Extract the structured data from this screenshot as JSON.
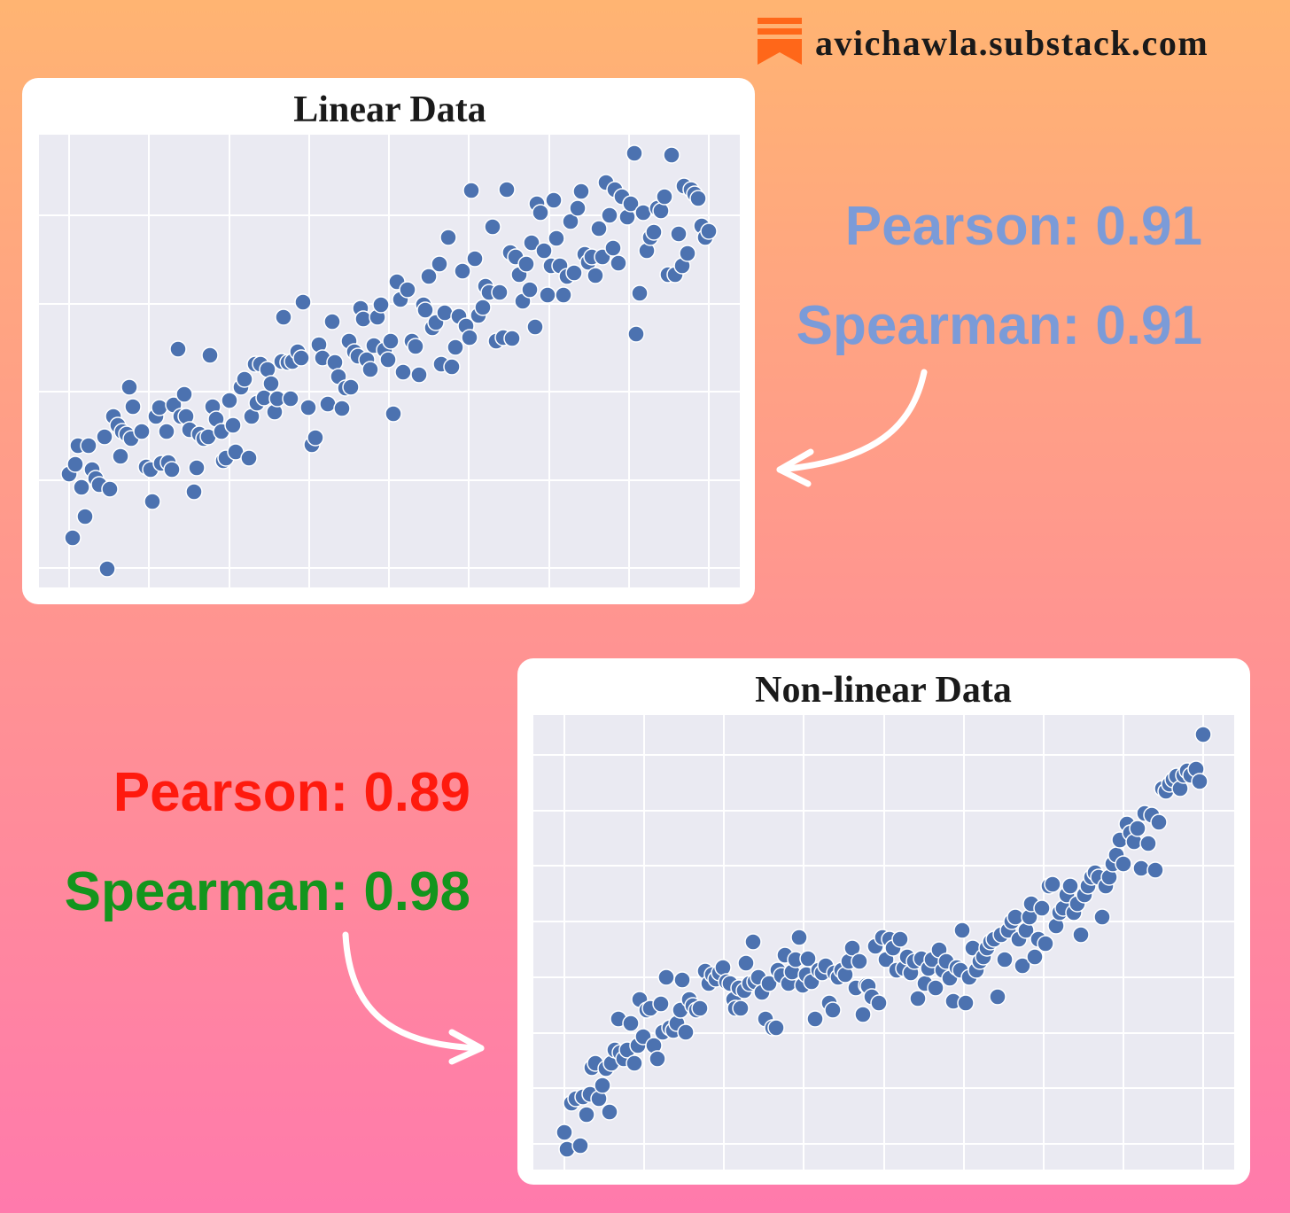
{
  "source": "avichawla.substack.com",
  "chart_data": [
    {
      "type": "scatter",
      "title": "Linear Data",
      "color": "#4c72b0",
      "grid": true,
      "xlim": [
        44,
        835
      ],
      "ylim": [
        337,
        848
      ],
      "xticks": [
        78,
        168,
        259,
        349,
        439,
        529,
        620,
        710,
        800
      ],
      "yticks": [
        359,
        458,
        558,
        657,
        757
      ],
      "annotations": [
        {
          "text": "Pearson: 0.91",
          "color": "#7b9bd8"
        },
        {
          "text": "Spearman: 0.91",
          "color": "#7b9bd8"
        }
      ],
      "x": [
        78,
        85,
        88,
        100,
        92,
        82,
        96,
        104,
        108,
        112,
        118,
        124,
        121,
        128,
        133,
        138,
        143,
        148,
        146,
        150,
        136,
        160,
        165,
        170,
        172,
        176,
        180,
        182,
        188,
        190,
        194,
        196,
        201,
        204,
        208,
        210,
        214,
        219,
        222,
        225,
        230,
        235,
        237,
        240,
        244,
        250,
        252,
        255,
        259,
        263,
        266,
        272,
        276,
        281,
        284,
        288,
        290,
        294,
        298,
        302,
        306,
        310,
        313,
        318,
        320,
        325,
        328,
        330,
        336,
        340,
        342,
        348,
        352,
        356,
        360,
        364,
        370,
        375,
        378,
        382,
        386,
        390,
        394,
        396,
        400,
        404,
        407,
        410,
        414,
        418,
        422,
        426,
        430,
        434,
        438,
        441,
        444,
        448,
        452,
        455,
        460,
        465,
        469,
        473,
        478,
        480,
        484,
        488,
        492,
        496,
        498,
        502,
        506,
        510,
        514,
        518,
        522,
        526,
        530,
        532,
        536,
        540,
        545,
        548,
        552,
        556,
        560,
        564,
        568,
        572,
        576,
        578,
        582,
        586,
        590,
        594,
        598,
        600,
        604,
        606,
        610,
        614,
        618,
        622,
        625,
        628,
        632,
        636,
        640,
        644,
        648,
        652,
        656,
        660,
        664,
        668,
        672,
        676,
        680,
        684,
        688,
        692,
        694,
        698,
        702,
        708,
        712,
        716,
        718,
        722,
        726,
        730,
        734,
        738,
        742,
        746,
        750,
        754,
        758,
        762,
        766,
        770,
        772,
        776,
        780,
        784,
        788,
        792,
        796,
        800
      ],
      "values": [
        465,
        476,
        497,
        497,
        450,
        393,
        417,
        470,
        460,
        453,
        507,
        448,
        358,
        530,
        520,
        513,
        510,
        505,
        563,
        541,
        485,
        513,
        473,
        470,
        434,
        530,
        540,
        477,
        513,
        478,
        470,
        543,
        606,
        530,
        555,
        530,
        515,
        445,
        472,
        510,
        505,
        507,
        599,
        541,
        527,
        513,
        480,
        483,
        548,
        520,
        490,
        563,
        572,
        483,
        530,
        589,
        545,
        589,
        551,
        583,
        567,
        535,
        550,
        592,
        642,
        591,
        550,
        592,
        603,
        596,
        659,
        540,
        498,
        506,
        611,
        596,
        544,
        637,
        591,
        575,
        539,
        562,
        615,
        563,
        603,
        598,
        652,
        640,
        594,
        583,
        610,
        642,
        656,
        605,
        594,
        615,
        533,
        682,
        662,
        580,
        673,
        615,
        609,
        577,
        656,
        650,
        688,
        630,
        636,
        702,
        589,
        647,
        732,
        586,
        608,
        643,
        694,
        632,
        619,
        785,
        708,
        644,
        653,
        677,
        670,
        744,
        615,
        670,
        619,
        786,
        715,
        618,
        710,
        690,
        660,
        702,
        673,
        726,
        631,
        770,
        760,
        717,
        667,
        700,
        774,
        731,
        700,
        667,
        688,
        750,
        692,
        765,
        784,
        713,
        704,
        710,
        689,
        742,
        710,
        794,
        757,
        720,
        786,
        703,
        778,
        755,
        770,
        827,
        623,
        669,
        760,
        717,
        732,
        738,
        765,
        762,
        778,
        690,
        825,
        690,
        736,
        700,
        790,
        714,
        786,
        781,
        776,
        745,
        732,
        739
      ]
    },
    {
      "type": "scatter",
      "title": "Non-linear Data",
      "color": "#4c72b0",
      "grid": true,
      "xlim": [
        602,
        1393
      ],
      "ylim": [
        80,
        593
      ],
      "xticks": [
        637,
        727,
        817,
        907,
        998,
        1088,
        1178,
        1268,
        1358
      ],
      "yticks": [
        109,
        172,
        234,
        297,
        360,
        423,
        485,
        548
      ],
      "annotations": [
        {
          "text": "Pearson: 0.89",
          "color": "#ff1a0e"
        },
        {
          "text": "Spearman: 0.98",
          "color": "#13951d"
        }
      ],
      "x": [
        637,
        640,
        645,
        650,
        655,
        658,
        662,
        666,
        668,
        672,
        676,
        680,
        684,
        688,
        690,
        694,
        698,
        700,
        704,
        708,
        712,
        716,
        720,
        722,
        726,
        730,
        734,
        738,
        742,
        746,
        748,
        752,
        756,
        760,
        764,
        768,
        770,
        774,
        778,
        782,
        786,
        790,
        796,
        800,
        804,
        808,
        812,
        816,
        820,
        824,
        828,
        830,
        834,
        836,
        840,
        842,
        846,
        850,
        852,
        856,
        860,
        864,
        868,
        872,
        876,
        878,
        882,
        886,
        890,
        894,
        898,
        902,
        906,
        910,
        912,
        916,
        920,
        924,
        928,
        932,
        936,
        940,
        942,
        946,
        950,
        954,
        958,
        962,
        966,
        970,
        974,
        978,
        980,
        984,
        988,
        992,
        996,
        1000,
        1004,
        1008,
        1012,
        1016,
        1020,
        1024,
        1028,
        1032,
        1036,
        1040,
        1044,
        1048,
        1052,
        1056,
        1060,
        1064,
        1068,
        1072,
        1076,
        1080,
        1084,
        1086,
        1090,
        1094,
        1098,
        1102,
        1106,
        1110,
        1114,
        1118,
        1122,
        1126,
        1130,
        1134,
        1138,
        1142,
        1146,
        1150,
        1154,
        1158,
        1162,
        1164,
        1168,
        1172,
        1176,
        1180,
        1184,
        1188,
        1192,
        1196,
        1200,
        1204,
        1208,
        1212,
        1216,
        1220,
        1224,
        1228,
        1232,
        1236,
        1240,
        1244,
        1248,
        1252,
        1256,
        1260,
        1264,
        1268,
        1272,
        1276,
        1280,
        1284,
        1288,
        1292,
        1296,
        1300,
        1304,
        1308,
        1312,
        1316,
        1320,
        1324,
        1328,
        1332,
        1336,
        1340,
        1344,
        1350,
        1354,
        1358
      ],
      "values": [
        122,
        103,
        155,
        160,
        107,
        162,
        142,
        165,
        195,
        200,
        160,
        175,
        194,
        145,
        200,
        215,
        250,
        212,
        205,
        215,
        245,
        200,
        220,
        272,
        230,
        260,
        262,
        220,
        205,
        267,
        235,
        297,
        240,
        237,
        245,
        260,
        294,
        235,
        272,
        265,
        260,
        262,
        304,
        290,
        300,
        295,
        302,
        308,
        292,
        290,
        272,
        262,
        285,
        262,
        282,
        313,
        290,
        337,
        292,
        297,
        280,
        250,
        290,
        240,
        240,
        305,
        299,
        322,
        290,
        303,
        317,
        342,
        288,
        300,
        318,
        292,
        250,
        305,
        302,
        310,
        268,
        260,
        302,
        297,
        305,
        300,
        315,
        330,
        285,
        315,
        255,
        288,
        287,
        275,
        332,
        268,
        342,
        317,
        340,
        330,
        305,
        340,
        307,
        320,
        302,
        315,
        273,
        318,
        290,
        307,
        317,
        285,
        328,
        305,
        315,
        296,
        270,
        308,
        305,
        350,
        268,
        297,
        330,
        305,
        315,
        320,
        330,
        337,
        340,
        275,
        345,
        317,
        350,
        360,
        365,
        340,
        310,
        350,
        365,
        380,
        320,
        340,
        375,
        335,
        400,
        402,
        355,
        370,
        375,
        390,
        400,
        370,
        380,
        345,
        390,
        400,
        410,
        415,
        410,
        365,
        400,
        410,
        425,
        435,
        452,
        425,
        470,
        460,
        450,
        465,
        420,
        482,
        448,
        480,
        418,
        472,
        510,
        507,
        515,
        520,
        524,
        510,
        525,
        530,
        525,
        532,
        518,
        571
      ]
    }
  ]
}
